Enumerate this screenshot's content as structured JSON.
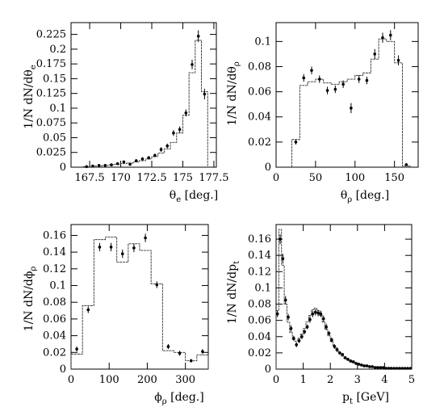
{
  "figure": {
    "panels": [
      {
        "ylabel_main": "1/N  dN/dθ",
        "ylabel_sub": "e",
        "xlabel_main": "θ",
        "xlabel_sub": "e",
        "xlabel_unit": " [deg.]"
      },
      {
        "ylabel_main": "1/N  dN/dθ",
        "ylabel_sub": "ρ",
        "xlabel_main": "θ",
        "xlabel_sub": "ρ",
        "xlabel_unit": " [deg.]"
      },
      {
        "ylabel_main": "1/N  dN/dϕ",
        "ylabel_sub": "ρ",
        "xlabel_main": "ϕ",
        "xlabel_sub": "ρ",
        "xlabel_unit": " [deg.]"
      },
      {
        "ylabel_main": "1/N  dN/dp",
        "ylabel_sub": "t",
        "xlabel_main": "p",
        "xlabel_sub": "t",
        "xlabel_unit": " [GeV]"
      }
    ]
  },
  "chart_data": [
    {
      "type": "scatter",
      "title": "",
      "xlabel": "θe [deg.]",
      "ylabel": "1/N dN/dθe",
      "xlim": [
        166,
        177.7
      ],
      "ylim": [
        0,
        0.245
      ],
      "xticks": [
        167.5,
        170,
        172.5,
        175,
        177.5
      ],
      "xtick_labels": [
        "167.5",
        "170",
        "172.5",
        "175",
        "177.5"
      ],
      "yticks": [
        0,
        0.025,
        0.05,
        0.075,
        0.1,
        0.125,
        0.15,
        0.175,
        0.2,
        0.225
      ],
      "ytick_labels": [
        "0",
        "0.025",
        "0.05",
        "0.075",
        "0.1",
        "0.125",
        "0.15",
        "0.175",
        "0.2",
        "0.225"
      ],
      "series": [
        {
          "kind": "data_points",
          "x": [
            167.25,
            167.75,
            168.25,
            168.75,
            169.25,
            169.75,
            170.25,
            170.75,
            171.25,
            171.75,
            172.25,
            172.75,
            173.25,
            173.75,
            174.25,
            174.75,
            175.25,
            175.75,
            176.25,
            176.75
          ],
          "y": [
            0.001,
            0.002,
            0.003,
            0.003,
            0.004,
            0.006,
            0.009,
            0.005,
            0.011,
            0.014,
            0.016,
            0.02,
            0.03,
            0.036,
            0.058,
            0.064,
            0.092,
            0.174,
            0.222,
            0.124
          ],
          "yerr": [
            0.001,
            0.001,
            0.001,
            0.001,
            0.001,
            0.002,
            0.002,
            0.002,
            0.002,
            0.003,
            0.003,
            0.003,
            0.004,
            0.004,
            0.005,
            0.005,
            0.006,
            0.008,
            0.01,
            0.009
          ]
        },
        {
          "kind": "mc_histogram",
          "edges": [
            167,
            167.5,
            168,
            168.5,
            169,
            169.5,
            170,
            170.5,
            171,
            171.5,
            172,
            172.5,
            173,
            173.5,
            174,
            174.5,
            175,
            175.5,
            176,
            176.5,
            177
          ],
          "values": [
            0.001,
            0.002,
            0.002,
            0.003,
            0.004,
            0.005,
            0.006,
            0.007,
            0.009,
            0.011,
            0.014,
            0.018,
            0.024,
            0.031,
            0.042,
            0.058,
            0.088,
            0.16,
            0.215,
            0.128
          ]
        }
      ]
    },
    {
      "type": "scatter",
      "title": "",
      "xlabel": "θρ [deg.]",
      "ylabel": "1/N dN/dθρ",
      "xlim": [
        0,
        180
      ],
      "ylim": [
        0,
        0.115
      ],
      "xticks": [
        0,
        50,
        100,
        150
      ],
      "xtick_labels": [
        "0",
        "50",
        "100",
        "150"
      ],
      "yticks": [
        0,
        0.02,
        0.04,
        0.06,
        0.08,
        0.1
      ],
      "ytick_labels": [
        "0",
        "0.02",
        "0.04",
        "0.06",
        "0.08",
        "0.1"
      ],
      "series": [
        {
          "kind": "data_points",
          "x": [
            25,
            35,
            45,
            55,
            65,
            75,
            85,
            95,
            105,
            115,
            125,
            135,
            145,
            155,
            165
          ],
          "y": [
            0.02,
            0.071,
            0.077,
            0.07,
            0.061,
            0.062,
            0.066,
            0.047,
            0.07,
            0.069,
            0.09,
            0.103,
            0.105,
            0.085,
            0.002
          ],
          "yerr": [
            0.002,
            0.003,
            0.003,
            0.003,
            0.003,
            0.003,
            0.003,
            0.004,
            0.003,
            0.003,
            0.004,
            0.004,
            0.004,
            0.004,
            0.001
          ]
        },
        {
          "kind": "mc_histogram",
          "edges": [
            20,
            30,
            40,
            50,
            60,
            70,
            80,
            90,
            100,
            110,
            120,
            130,
            140,
            150,
            160,
            170
          ],
          "values": [
            0.022,
            0.065,
            0.068,
            0.07,
            0.067,
            0.066,
            0.068,
            0.07,
            0.073,
            0.075,
            0.086,
            0.102,
            0.1,
            0.083,
            0.001
          ]
        }
      ]
    },
    {
      "type": "scatter",
      "title": "",
      "xlabel": "ϕρ [deg.]",
      "ylabel": "1/N dN/dϕρ",
      "xlim": [
        0,
        360
      ],
      "ylim": [
        0,
        0.173
      ],
      "xticks": [
        0,
        100,
        200,
        300
      ],
      "xtick_labels": [
        "0",
        "100",
        "200",
        "300"
      ],
      "yticks": [
        0,
        0.02,
        0.04,
        0.06,
        0.08,
        0.1,
        0.12,
        0.14,
        0.16
      ],
      "ytick_labels": [
        "0",
        "0.02",
        "0.04",
        "0.06",
        "0.08",
        "0.1",
        "0.12",
        "0.14",
        "0.16"
      ],
      "series": [
        {
          "kind": "data_points",
          "x": [
            15,
            45,
            75,
            105,
            135,
            165,
            195,
            225,
            255,
            285,
            315,
            345
          ],
          "y": [
            0.024,
            0.071,
            0.146,
            0.146,
            0.138,
            0.145,
            0.157,
            0.101,
            0.027,
            0.019,
            0.01,
            0.021
          ],
          "yerr": [
            0.003,
            0.004,
            0.005,
            0.005,
            0.005,
            0.005,
            0.005,
            0.004,
            0.003,
            0.003,
            0.002,
            0.003
          ]
        },
        {
          "kind": "mc_histogram",
          "edges": [
            0,
            30,
            60,
            90,
            120,
            150,
            180,
            210,
            240,
            270,
            300,
            330,
            360
          ],
          "values": [
            0.018,
            0.076,
            0.155,
            0.158,
            0.128,
            0.15,
            0.142,
            0.102,
            0.022,
            0.02,
            0.01,
            0.017
          ]
        }
      ]
    },
    {
      "type": "scatter",
      "title": "",
      "xlabel": "pt [GeV]",
      "ylabel": "1/N dN/dpt",
      "xlim": [
        0,
        5
      ],
      "ylim": [
        0,
        0.178
      ],
      "xticks": [
        0,
        1,
        2,
        3,
        4,
        5
      ],
      "xtick_labels": [
        "0",
        "1",
        "2",
        "3",
        "4",
        "5"
      ],
      "yticks": [
        0,
        0.02,
        0.04,
        0.06,
        0.08,
        0.1,
        0.12,
        0.14,
        0.16
      ],
      "ytick_labels": [
        "0",
        "0.02",
        "0.04",
        "0.06",
        "0.08",
        "0.1",
        "0.12",
        "0.14",
        "0.16"
      ],
      "series": [
        {
          "kind": "data_points",
          "x": [
            0.05,
            0.15,
            0.25,
            0.35,
            0.45,
            0.55,
            0.65,
            0.75,
            0.85,
            0.95,
            1.05,
            1.15,
            1.25,
            1.35,
            1.45,
            1.55,
            1.65,
            1.75,
            1.85,
            1.95,
            2.05,
            2.15,
            2.25,
            2.35,
            2.45,
            2.55,
            2.65,
            2.75,
            2.85,
            2.95,
            3.05,
            3.15,
            3.25,
            3.35,
            3.45,
            3.55,
            3.65,
            3.75,
            3.85,
            3.95,
            4.05,
            4.15,
            4.25,
            4.35,
            4.45,
            4.55,
            4.65,
            4.75,
            4.85,
            4.95
          ],
          "y": [
            0.068,
            0.16,
            0.136,
            0.085,
            0.064,
            0.05,
            0.038,
            0.03,
            0.035,
            0.04,
            0.046,
            0.052,
            0.061,
            0.068,
            0.07,
            0.069,
            0.068,
            0.062,
            0.052,
            0.044,
            0.036,
            0.028,
            0.024,
            0.02,
            0.018,
            0.014,
            0.012,
            0.01,
            0.009,
            0.007,
            0.006,
            0.005,
            0.004,
            0.004,
            0.003,
            0.003,
            0.002,
            0.002,
            0.002,
            0.002,
            0.001,
            0.001,
            0.001,
            0.001,
            0.001,
            0.001,
            0.001,
            0.001,
            0.001,
            0.001
          ],
          "yerr": [
            0.004,
            0.006,
            0.006,
            0.005,
            0.004,
            0.004,
            0.003,
            0.003,
            0.003,
            0.003,
            0.003,
            0.003,
            0.004,
            0.004,
            0.004,
            0.004,
            0.004,
            0.004,
            0.004,
            0.003,
            0.003,
            0.003,
            0.003,
            0.002,
            0.002,
            0.002,
            0.002,
            0.002,
            0.002,
            0.001,
            0.001,
            0.001,
            0.001,
            0.001,
            0.001,
            0.001,
            0.001,
            0.001,
            0.001,
            0.001,
            0.001,
            0.001,
            0.001,
            0.001,
            0.001,
            0.001,
            0.001,
            0.001,
            0.001,
            0.001
          ]
        },
        {
          "kind": "mc_histogram",
          "edges": [
            0,
            0.1,
            0.2,
            0.3,
            0.4,
            0.5,
            0.6,
            0.7,
            0.8,
            0.9,
            1.0,
            1.1,
            1.2,
            1.3,
            1.4,
            1.5,
            1.6,
            1.7,
            1.8,
            1.9,
            2.0,
            2.1,
            2.2,
            2.3,
            2.4,
            2.5,
            2.6,
            2.7,
            2.8,
            2.9,
            3.0,
            3.1,
            3.2,
            3.3,
            3.4,
            3.5,
            3.6,
            3.7,
            3.8,
            3.9,
            4.0,
            4.1,
            4.2,
            4.3,
            4.4,
            4.5,
            4.6,
            4.7,
            4.8,
            4.9,
            5.0
          ],
          "values": [
            0.072,
            0.172,
            0.128,
            0.08,
            0.058,
            0.045,
            0.036,
            0.034,
            0.038,
            0.043,
            0.05,
            0.058,
            0.066,
            0.073,
            0.075,
            0.072,
            0.066,
            0.058,
            0.049,
            0.041,
            0.034,
            0.028,
            0.023,
            0.019,
            0.016,
            0.013,
            0.011,
            0.009,
            0.008,
            0.007,
            0.006,
            0.005,
            0.004,
            0.004,
            0.003,
            0.003,
            0.003,
            0.002,
            0.002,
            0.002,
            0.002,
            0.002,
            0.001,
            0.001,
            0.001,
            0.001,
            0.001,
            0.001,
            0.001,
            0.001
          ]
        }
      ]
    }
  ]
}
